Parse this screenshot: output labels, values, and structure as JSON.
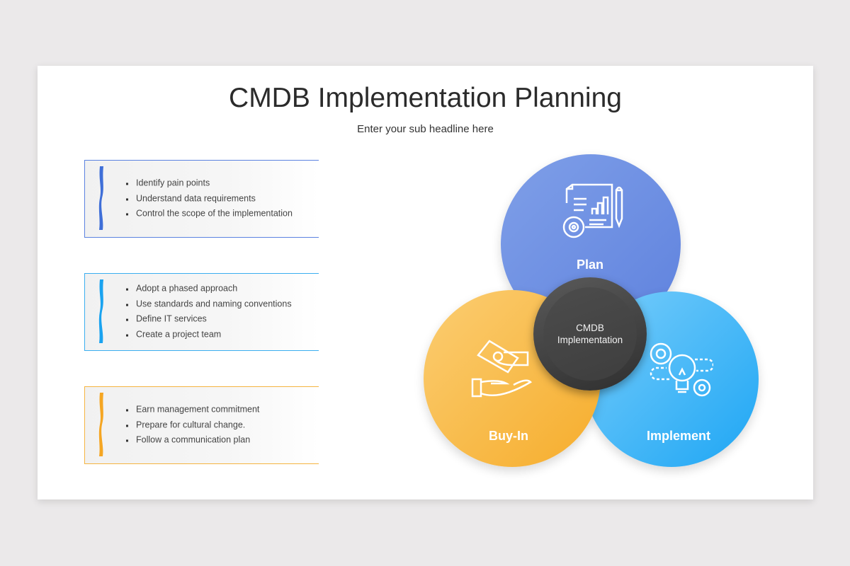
{
  "header": {
    "title": "CMDB Implementation Planning",
    "subtitle": "Enter your sub headline here"
  },
  "boxes": [
    {
      "color": "#3f6fd8",
      "items": [
        "Identify pain points",
        "Understand data requirements",
        "Control the scope of the implementation"
      ]
    },
    {
      "color": "#1aa3f0",
      "items": [
        "Adopt a phased approach",
        "Use standards and naming conventions",
        "Define IT services",
        "Create a project team"
      ]
    },
    {
      "color": "#f5a623",
      "items": [
        "Earn management commitment",
        "Prepare for cultural change.",
        "Follow a communication plan"
      ]
    }
  ],
  "diagram": {
    "center": {
      "line1": "CMDB",
      "line2": "Implementation"
    },
    "plan": {
      "label": "Plan",
      "color": "#6b8fe3",
      "icon": "planning-document-icon"
    },
    "buyin": {
      "label": "Buy-In",
      "color": "#f8b84a",
      "icon": "money-hand-icon"
    },
    "implement": {
      "label": "Implement",
      "color": "#3db5f7",
      "icon": "lightbulb-gears-icon"
    }
  }
}
